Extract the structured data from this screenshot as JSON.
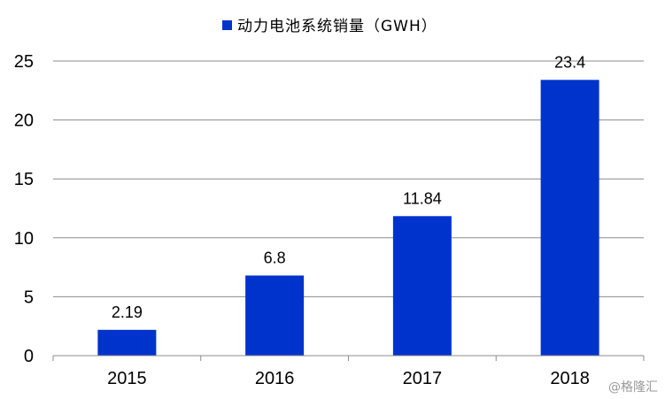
{
  "chart_data": {
    "type": "bar",
    "categories": [
      "2015",
      "2016",
      "2017",
      "2018"
    ],
    "series": [
      {
        "name": "动力电池系统销量（GWH）",
        "values": [
          2.19,
          6.8,
          11.84,
          23.4
        ],
        "color": "#0033CC"
      }
    ],
    "data_labels": [
      "2.19",
      "6.8",
      "11.84",
      "23.4"
    ],
    "y_ticks": [
      "0",
      "5",
      "10",
      "15",
      "20",
      "25"
    ],
    "ylim": [
      0,
      25
    ],
    "grid": true,
    "legend_position": "top-center",
    "title": "",
    "xlabel": "",
    "ylabel": ""
  },
  "watermark": "@格隆汇"
}
